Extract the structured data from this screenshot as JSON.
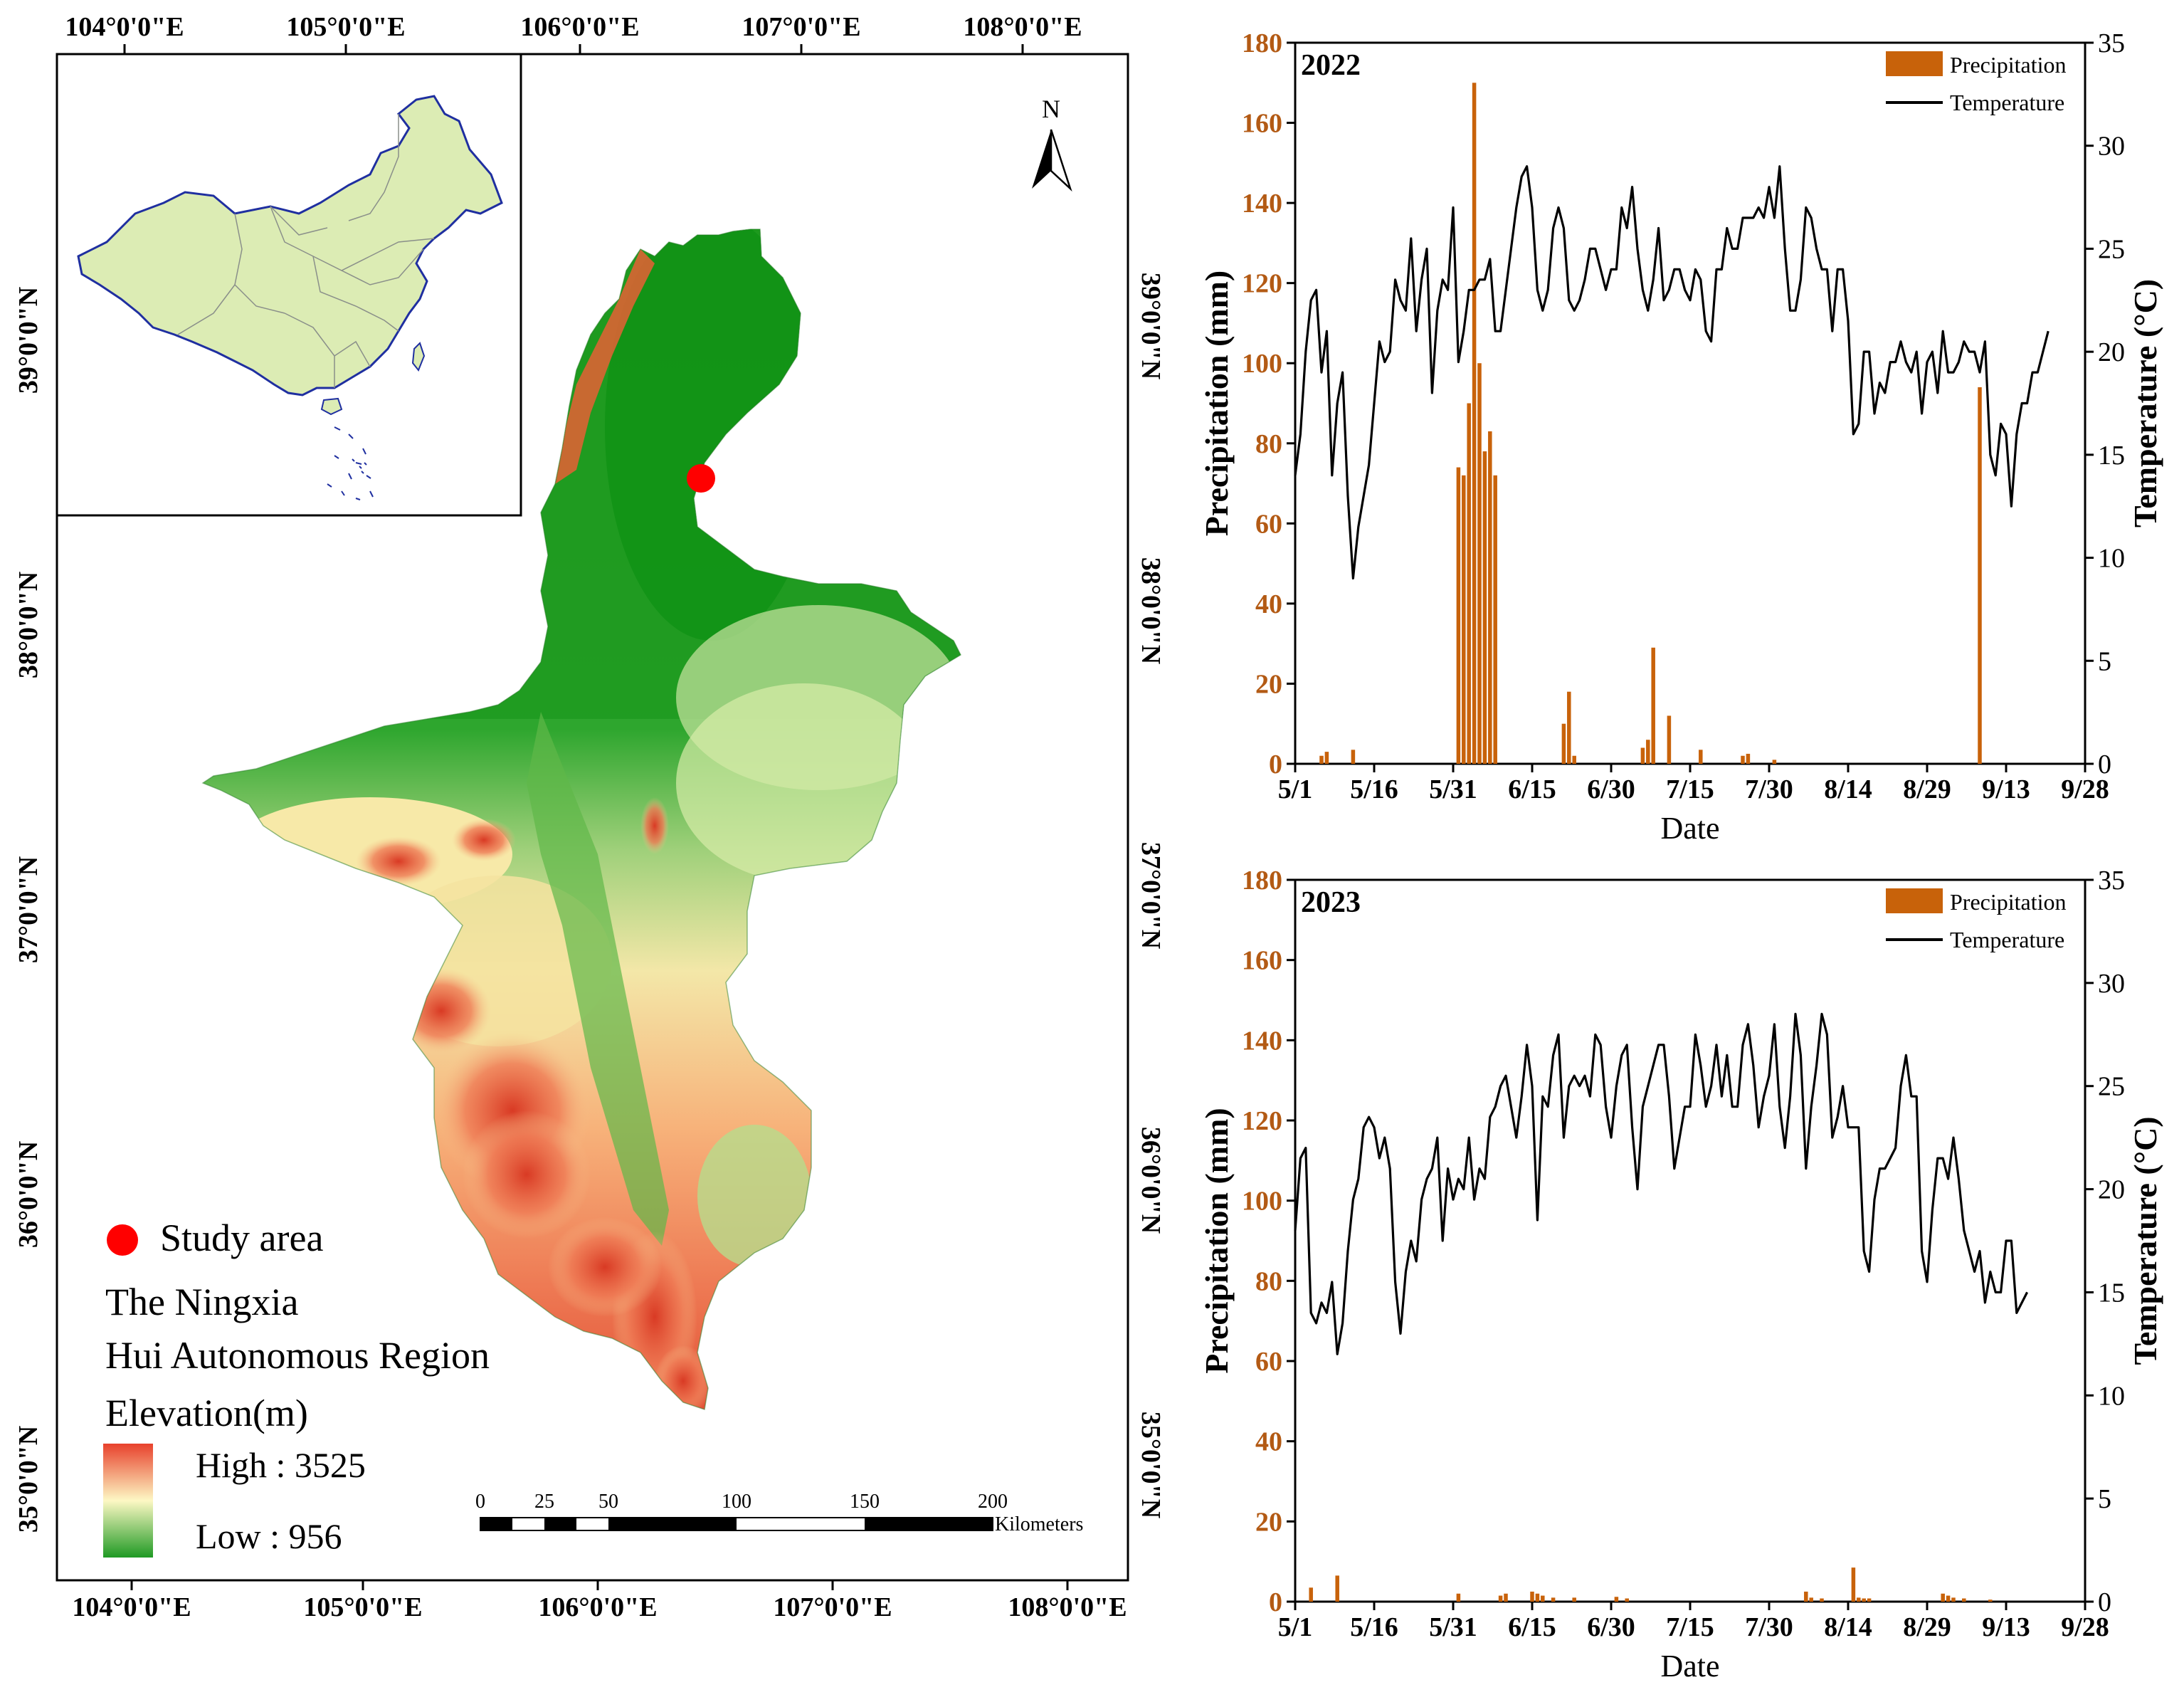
{
  "map": {
    "top_lon_labels": [
      "104°0'0\"E",
      "105°0'0\"E",
      "106°0'0\"E",
      "107°0'0\"E",
      "108°0'0\"E"
    ],
    "bottom_lon_labels": [
      "104°0'0\"E",
      "105°0'0\"E",
      "106°0'0\"E",
      "107°0'0\"E",
      "108°0'0\"E"
    ],
    "left_lat_labels": [
      "39°0'0\"N",
      "38°0'0\"N",
      "37°0'0\"N",
      "36°0'0\"N",
      "35°0'0\"N"
    ],
    "right_lat_labels": [
      "39°0'0\"N",
      "38°0'0\"N",
      "37°0'0\"N",
      "36°0'0\"N",
      "35°0'0\"N"
    ],
    "north_label": "N",
    "legend": {
      "study_area": "Study area",
      "region_line1": "The Ningxia",
      "region_line2": "Hui Autonomous Region",
      "elevation_title": "Elevation(m)",
      "high": "High : 3525",
      "low": "Low : 956"
    },
    "scale_bar": {
      "ticks": [
        "0",
        "25",
        "50",
        "100",
        "150",
        "200"
      ],
      "unit": "Kilometers"
    },
    "colors": {
      "study_point": "#ff0000",
      "low": "#2e9a2e",
      "mid": "#fffac0",
      "high": "#e8412c",
      "inset_fill": "#dcecb4",
      "inset_border": "#1f2fa0"
    }
  },
  "chart_data": [
    {
      "type": "bar+line",
      "panel_label": "2022",
      "xlabel": "Date",
      "ylabel_left": "Precipitation (mm)",
      "ylabel_right": "Temperature (°C)",
      "ylim_left": [
        0,
        180
      ],
      "ylim_right": [
        0,
        35
      ],
      "y_ticks_left": [
        "0",
        "20",
        "40",
        "60",
        "80",
        "100",
        "120",
        "140",
        "160",
        "180"
      ],
      "y_ticks_right": [
        "0",
        "5",
        "10",
        "15",
        "20",
        "25",
        "30",
        "35"
      ],
      "x_ticks": [
        "5/1",
        "5/16",
        "5/31",
        "6/15",
        "6/30",
        "7/15",
        "7/30",
        "8/14",
        "8/29",
        "9/13",
        "9/28"
      ],
      "legend": [
        "Precipitation",
        "Temperature"
      ],
      "precipitation": [
        {
          "day": 5,
          "value": 2
        },
        {
          "day": 6,
          "value": 3
        },
        {
          "day": 11,
          "value": 3.5
        },
        {
          "day": 31,
          "value": 74
        },
        {
          "day": 32,
          "value": 72
        },
        {
          "day": 33,
          "value": 90
        },
        {
          "day": 34,
          "value": 170
        },
        {
          "day": 35,
          "value": 100
        },
        {
          "day": 36,
          "value": 78
        },
        {
          "day": 37,
          "value": 83
        },
        {
          "day": 38,
          "value": 72
        },
        {
          "day": 51,
          "value": 10
        },
        {
          "day": 52,
          "value": 18
        },
        {
          "day": 53,
          "value": 2
        },
        {
          "day": 66,
          "value": 4
        },
        {
          "day": 67,
          "value": 6
        },
        {
          "day": 68,
          "value": 29
        },
        {
          "day": 71,
          "value": 12
        },
        {
          "day": 77,
          "value": 3.5
        },
        {
          "day": 85,
          "value": 2
        },
        {
          "day": 86,
          "value": 2.5
        },
        {
          "day": 91,
          "value": 1
        },
        {
          "day": 130,
          "value": 94
        }
      ],
      "temperature": [
        14,
        16,
        20,
        22.5,
        23,
        19,
        21,
        14,
        17.5,
        19,
        13,
        9,
        11.5,
        13,
        14.5,
        17.5,
        20.5,
        19.5,
        20,
        23.5,
        22.5,
        22,
        25.5,
        21,
        23.5,
        25,
        18,
        22,
        23.5,
        23,
        27,
        19.5,
        21,
        23,
        23,
        23.5,
        23.5,
        24.5,
        21,
        21,
        23,
        25,
        27,
        28.5,
        29,
        27,
        23,
        22,
        23,
        26,
        27,
        26,
        22.5,
        22,
        22.5,
        23.5,
        25,
        25,
        24,
        23,
        24,
        24,
        27,
        26,
        28,
        25,
        23,
        22,
        23.5,
        26,
        22.5,
        23,
        24,
        24,
        23,
        22.5,
        24,
        23.5,
        21,
        20.5,
        24,
        24,
        26,
        25,
        25,
        26.5,
        26.5,
        26.5,
        27,
        26.5,
        28,
        26.5,
        29,
        25,
        22,
        22,
        23.5,
        27,
        26.5,
        25,
        24,
        24,
        21,
        24,
        24,
        21.5,
        16,
        16.5,
        20,
        20,
        17,
        18.5,
        18,
        19.5,
        19.5,
        20.5,
        19.5,
        19,
        20,
        17,
        19.5,
        20,
        18,
        21,
        19,
        19,
        19.5,
        20.5,
        20,
        20,
        19,
        20.5,
        15,
        14,
        16.5,
        16,
        12.5,
        16,
        17.5,
        17.5,
        19,
        19,
        20,
        21
      ]
    },
    {
      "type": "bar+line",
      "panel_label": "2023",
      "xlabel": "Date",
      "ylabel_left": "Precipitation (mm)",
      "ylabel_right": "Temperature (°C)",
      "ylim_left": [
        0,
        180
      ],
      "ylim_right": [
        0,
        35
      ],
      "y_ticks_left": [
        "0",
        "20",
        "40",
        "60",
        "80",
        "100",
        "120",
        "140",
        "160",
        "180"
      ],
      "y_ticks_right": [
        "0",
        "5",
        "10",
        "15",
        "20",
        "25",
        "30",
        "35"
      ],
      "x_ticks": [
        "5/1",
        "5/16",
        "5/31",
        "6/15",
        "6/30",
        "7/15",
        "7/30",
        "8/14",
        "8/29",
        "9/13",
        "9/28"
      ],
      "legend": [
        "Precipitation",
        "Temperature"
      ],
      "precipitation": [
        {
          "day": 3,
          "value": 3.5
        },
        {
          "day": 8,
          "value": 6.5
        },
        {
          "day": 31,
          "value": 2
        },
        {
          "day": 39,
          "value": 1.5
        },
        {
          "day": 40,
          "value": 2
        },
        {
          "day": 45,
          "value": 2.5
        },
        {
          "day": 46,
          "value": 2
        },
        {
          "day": 47,
          "value": 1.5
        },
        {
          "day": 49,
          "value": 1
        },
        {
          "day": 53,
          "value": 1
        },
        {
          "day": 61,
          "value": 1.2
        },
        {
          "day": 63,
          "value": 0.8
        },
        {
          "day": 97,
          "value": 2.5
        },
        {
          "day": 98,
          "value": 1
        },
        {
          "day": 100,
          "value": 0.8
        },
        {
          "day": 106,
          "value": 8.5
        },
        {
          "day": 107,
          "value": 1
        },
        {
          "day": 108,
          "value": 0.8
        },
        {
          "day": 109,
          "value": 0.8
        },
        {
          "day": 123,
          "value": 2
        },
        {
          "day": 124,
          "value": 1.5
        },
        {
          "day": 125,
          "value": 1
        },
        {
          "day": 127,
          "value": 0.8
        },
        {
          "day": 132,
          "value": 0.5
        }
      ],
      "temperature": [
        18,
        21.5,
        22,
        14,
        13.5,
        14.5,
        14,
        15.5,
        12,
        13.5,
        17,
        19.5,
        20.5,
        23,
        23.5,
        23,
        21.5,
        22.5,
        21,
        15.5,
        13,
        16,
        17.5,
        16.5,
        19.5,
        20.5,
        21,
        22.5,
        17.5,
        21,
        19.5,
        20.5,
        20,
        22.5,
        19.5,
        21,
        20.5,
        23.5,
        24,
        25,
        25.5,
        24,
        22.5,
        24.5,
        27,
        25,
        18.5,
        24.5,
        24,
        26.5,
        27.5,
        22.5,
        25,
        25.5,
        25,
        25.5,
        24.5,
        27.5,
        27,
        24,
        22.5,
        25,
        26.5,
        27,
        23,
        20,
        24,
        25,
        26,
        27,
        27,
        24.5,
        21,
        22.5,
        24,
        24,
        27.5,
        26,
        24,
        25,
        27,
        24.5,
        26.5,
        24,
        24,
        27,
        28,
        26,
        23,
        24.5,
        25.5,
        28,
        24,
        22,
        24.5,
        28.5,
        26.5,
        21,
        24,
        26,
        28.5,
        27.5,
        22.5,
        23.5,
        25,
        23,
        23,
        23,
        17,
        16,
        19.5,
        21,
        21,
        21.5,
        22,
        25,
        26.5,
        24.5,
        24.5,
        17,
        15.5,
        19,
        21.5,
        21.5,
        20.5,
        22.5,
        20.5,
        18,
        17,
        16,
        17,
        14.5,
        16,
        15,
        15,
        17.5,
        17.5,
        14,
        14.5,
        15
      ]
    }
  ]
}
